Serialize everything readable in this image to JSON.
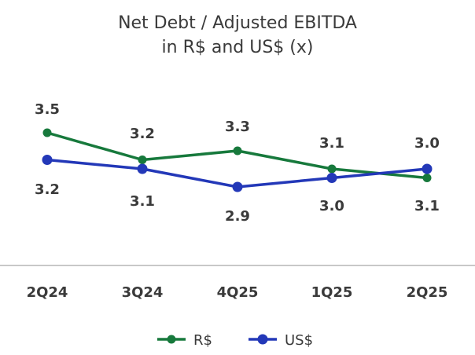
{
  "chart_data": {
    "type": "line",
    "title": "Net Debt / Adjusted EBITDA",
    "subtitle": "in R$ and US$ (x)",
    "categories": [
      "2Q24",
      "3Q24",
      "4Q25",
      "1Q25",
      "2Q25"
    ],
    "series": [
      {
        "name": "R$",
        "values": [
          3.5,
          3.2,
          3.3,
          3.1,
          3.0
        ],
        "labels": [
          "3.5",
          "3.2",
          "3.3",
          "3.1",
          "3.0"
        ],
        "color": "#17793c"
      },
      {
        "name": "US$",
        "values": [
          3.2,
          3.1,
          2.9,
          3.0,
          3.1
        ],
        "labels": [
          "3.2",
          "3.1",
          "2.9",
          "3.0",
          "3.1"
        ],
        "color": "#2338b8"
      }
    ],
    "xlabel": "",
    "ylabel": "",
    "ylim": [
      2.9,
      3.5
    ],
    "grid": false,
    "legend": "bottom-center"
  }
}
